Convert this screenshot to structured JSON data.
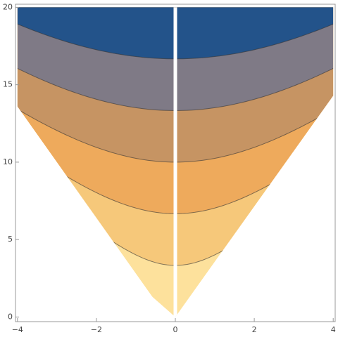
{
  "chart_data": {
    "type": "contour",
    "xlim": [
      -4.05,
      4.05
    ],
    "ylim": [
      -0.3,
      20.2
    ],
    "xticks": [
      {
        "value": -4,
        "label": "−4"
      },
      {
        "value": -2,
        "label": "−2"
      },
      0,
      2,
      4
    ],
    "yticks": [
      0,
      5,
      10,
      15,
      20
    ],
    "levels": [
      0,
      3.33,
      6.67,
      10,
      13.33,
      16.67
    ],
    "colors": [
      "#fde19c",
      "#f6c87a",
      "#eeaa5c",
      "#c69463",
      "#7f7a86",
      "#23538a"
    ]
  }
}
